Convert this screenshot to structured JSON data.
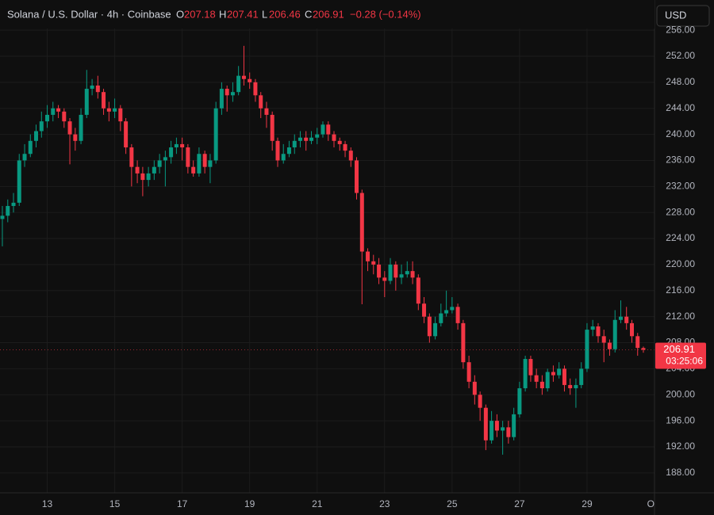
{
  "header": {
    "symbol": "Solana / U.S. Dollar · 4h · Coinbase",
    "open_label": "O",
    "high_label": "H",
    "low_label": "L",
    "close_label": "C",
    "change": "−0.28 (−0.14%)",
    "currency": "USD",
    "countdown": "03:25:06"
  },
  "chart_data": {
    "type": "candlestick",
    "up_color": "#089981",
    "down_color": "#f23645",
    "grid": true,
    "x": [
      11.67,
      11.83,
      12,
      12.17,
      12.33,
      12.5,
      12.67,
      12.83,
      13,
      13.17,
      13.33,
      13.5,
      13.67,
      13.83,
      14,
      14.17,
      14.33,
      14.5,
      14.67,
      14.83,
      15,
      15.17,
      15.33,
      15.5,
      15.67,
      15.83,
      16,
      16.17,
      16.33,
      16.5,
      16.67,
      16.83,
      17,
      17.17,
      17.33,
      17.5,
      17.67,
      17.83,
      18,
      18.17,
      18.33,
      18.5,
      18.67,
      18.83,
      19,
      19.17,
      19.33,
      19.5,
      19.67,
      19.83,
      20,
      20.17,
      20.33,
      20.5,
      20.67,
      20.83,
      21,
      21.17,
      21.33,
      21.5,
      21.67,
      21.83,
      22,
      22.17,
      22.33,
      22.5,
      22.67,
      22.83,
      23,
      23.17,
      23.33,
      23.5,
      23.67,
      23.83,
      24,
      24.17,
      24.33,
      24.5,
      24.67,
      24.83,
      25,
      25.17,
      25.33,
      25.5,
      25.67,
      25.83,
      26,
      26.17,
      26.33,
      26.5,
      26.67,
      26.83,
      27,
      27.17,
      27.33,
      27.5,
      27.67,
      27.83,
      28,
      28.17,
      28.33,
      28.5,
      28.67,
      28.83,
      29,
      29.17,
      29.33,
      29.5,
      29.67,
      29.83,
      30,
      30.17,
      30.33,
      30.5,
      30.67
    ],
    "open": [
      227,
      227.5,
      229,
      229.5,
      236,
      237,
      239,
      240.5,
      242,
      243,
      244,
      243.5,
      242,
      240,
      239,
      243,
      247,
      247.5,
      246.5,
      244,
      243.5,
      244,
      242,
      238,
      235,
      234,
      233,
      234,
      235,
      236,
      236.5,
      238,
      238.5,
      238,
      235,
      234,
      237,
      235,
      236,
      244,
      247,
      246,
      246.5,
      249,
      248.5,
      248,
      246,
      244,
      243,
      239,
      236,
      237,
      238,
      239,
      239.5,
      239,
      239.5,
      240,
      241.5,
      240,
      239,
      238.5,
      237.5,
      236,
      231,
      222,
      220.5,
      220,
      218,
      217.5,
      220,
      218,
      218.5,
      219,
      218,
      214,
      212,
      209,
      211,
      212.5,
      213,
      213.5,
      211,
      205,
      202,
      200,
      198,
      193,
      196,
      194.5,
      195,
      193.5,
      197,
      201,
      205.5,
      203,
      202,
      201,
      203.5,
      203,
      204,
      201.5,
      201,
      201.5,
      204,
      210,
      210.5,
      209,
      208,
      207,
      211.5,
      212,
      211,
      209,
      207.18
    ],
    "high": [
      229,
      230,
      231,
      237,
      238.5,
      240,
      241.5,
      243.5,
      244.5,
      245,
      244.5,
      244,
      242.5,
      241,
      244,
      249.9,
      248.5,
      249,
      247,
      245,
      245.5,
      244.5,
      242.5,
      238.5,
      236,
      235,
      235,
      236,
      237,
      237.5,
      239,
      239.5,
      239.5,
      238.5,
      236,
      238,
      237.5,
      237,
      245,
      248,
      247.5,
      248,
      250.5,
      253.6,
      249.5,
      248.5,
      246.5,
      245,
      243.5,
      239.5,
      238.5,
      239,
      240,
      240.5,
      240.5,
      240.5,
      241,
      242,
      242,
      240.5,
      239.5,
      239,
      238,
      236.5,
      231.5,
      222.5,
      221.5,
      221,
      219,
      221,
      220.5,
      220,
      220.5,
      220.5,
      218.5,
      215,
      212.5,
      212,
      214,
      216,
      215,
      214,
      211.5,
      206,
      203,
      200.5,
      198.5,
      197.5,
      197,
      196,
      196,
      198,
      202,
      206,
      206,
      204,
      203,
      204,
      204.5,
      205,
      204.5,
      202.5,
      202.5,
      205,
      211,
      211.5,
      211,
      210,
      208.5,
      213,
      214.5,
      213.5,
      211.5,
      209.5,
      207.41
    ],
    "low": [
      222.8,
      226.5,
      228,
      229,
      235,
      236.5,
      238,
      239.5,
      241,
      242,
      242.5,
      241,
      235.4,
      237.5,
      238.5,
      242.5,
      246,
      245.5,
      243,
      242,
      242.5,
      240.5,
      237,
      232,
      232.5,
      230.5,
      232,
      233,
      234,
      232,
      235.5,
      237,
      236,
      234,
      233.5,
      233.5,
      234,
      232.5,
      235.5,
      243,
      243.5,
      245,
      246,
      247.5,
      247,
      245,
      242.5,
      241,
      237.5,
      235,
      235.5,
      236.5,
      237,
      238,
      237.5,
      238.5,
      238.5,
      239.5,
      239,
      238,
      237.5,
      236.5,
      235,
      230,
      213.9,
      219,
      218.5,
      217,
      215,
      217,
      216,
      217,
      218,
      217,
      213,
      211,
      208,
      208.5,
      210.5,
      212,
      212.5,
      210,
      204,
      201,
      198.5,
      196,
      191.5,
      192.5,
      193.5,
      190.8,
      192.5,
      193,
      196.5,
      200.5,
      202,
      201,
      200,
      200.5,
      202,
      202.5,
      200.5,
      200,
      198,
      201,
      203.5,
      209,
      208,
      205,
      206,
      206.5,
      211,
      210,
      208,
      206,
      206.46
    ],
    "close": [
      227.5,
      229,
      229.5,
      236,
      237,
      239,
      240.5,
      242,
      243,
      244,
      243.5,
      242,
      240,
      239,
      243,
      247,
      247.5,
      246.5,
      244,
      243.5,
      244,
      242,
      238,
      235,
      234,
      233,
      234,
      235,
      236,
      236.5,
      238,
      238.5,
      238,
      235,
      234,
      237,
      235,
      236,
      244,
      247,
      246,
      246.5,
      249,
      248.5,
      248,
      246,
      244,
      243,
      239,
      236,
      237,
      238,
      239,
      239.5,
      239,
      239.5,
      240,
      241.5,
      240,
      239,
      238.5,
      237.5,
      236,
      231,
      222,
      220.5,
      220,
      218,
      217.5,
      220,
      218,
      218.5,
      219,
      218,
      214,
      212,
      209,
      211,
      212.5,
      213,
      213.5,
      211,
      205,
      202,
      200,
      198,
      193,
      196,
      194.5,
      195,
      193.5,
      197,
      201,
      205.5,
      203,
      202,
      201,
      203.5,
      203,
      204,
      201.5,
      201,
      201.5,
      204,
      210,
      210.5,
      209,
      208,
      207,
      211.5,
      212,
      211,
      209,
      207.2,
      206.91
    ],
    "xlim": [
      11.6,
      31
    ],
    "ylim": [
      184.94,
      260.64
    ],
    "xticks": [
      13,
      15,
      17,
      19,
      21,
      23,
      25,
      27,
      29,
      {
        "value": 31,
        "label": "O"
      }
    ],
    "yticks": [
      {
        "value": 188,
        "label": "188.00"
      },
      {
        "value": 192,
        "label": "192.00"
      },
      {
        "value": 196,
        "label": "196.00"
      },
      {
        "value": 200,
        "label": "200.00"
      },
      {
        "value": 204,
        "label": "204.00"
      },
      {
        "value": 208,
        "label": "208.00"
      },
      {
        "value": 212,
        "label": "212.00"
      },
      {
        "value": 216,
        "label": "216.00"
      },
      {
        "value": 220,
        "label": "220.00"
      },
      {
        "value": 224,
        "label": "224.00"
      },
      {
        "value": 228,
        "label": "228.00"
      },
      {
        "value": 232,
        "label": "232.00"
      },
      {
        "value": 236,
        "label": "236.00"
      },
      {
        "value": 240,
        "label": "240.00"
      },
      {
        "value": 244,
        "label": "244.00"
      },
      {
        "value": 248,
        "label": "248.00"
      },
      {
        "value": 252,
        "label": "252.00"
      },
      {
        "value": 256,
        "label": "256.00"
      }
    ]
  }
}
